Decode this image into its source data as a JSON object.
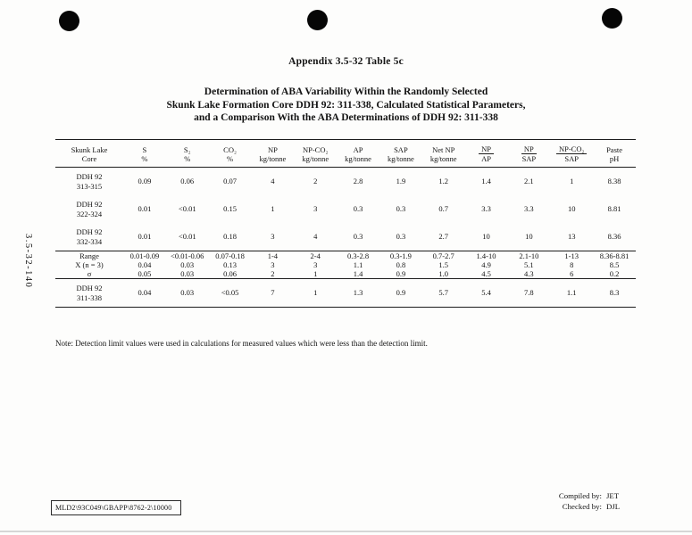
{
  "page": {
    "side_label": "3.5-32-140",
    "appendix_title": "Appendix 3.5-32 Table 5c",
    "heading_lines": [
      "Determination of ABA Variability Within the Randomly Selected",
      "Skunk Lake Formation Core DDH 92: 311-338, Calculated Statistical Parameters,",
      "and a Comparison With the ABA Determinations of DDH 92: 311-338"
    ],
    "note": "Note:  Detection limit values were used in calculations for measured values which were less than the detection limit.",
    "footer_reference": "MLD2\\93C049\\GBAPP\\8762-2\\10000",
    "credits": {
      "compiled_label": "Compiled by:",
      "compiled_value": "JET",
      "checked_label": "Checked by:",
      "checked_value": "DJL"
    }
  },
  "table": {
    "headers": [
      {
        "line1": "Skunk Lake",
        "line2": "Core"
      },
      {
        "line1": "S",
        "line2": "%"
      },
      {
        "line1": "S₂",
        "line2": "%"
      },
      {
        "line1": "CO₂",
        "line2": "%"
      },
      {
        "line1": "NP",
        "line2": "kg/tonne"
      },
      {
        "line1": "NP-CO₂",
        "line2": "kg/tonne"
      },
      {
        "line1": "AP",
        "line2": "kg/tonne"
      },
      {
        "line1": "SAP",
        "line2": "kg/tonne"
      },
      {
        "line1": "Net NP",
        "line2": "kg/tonne"
      },
      {
        "line1": "NP",
        "line2": "AP",
        "fraction": true
      },
      {
        "line1": "NP",
        "line2": "SAP",
        "fraction": true
      },
      {
        "line1": "NP-CO₂",
        "line2": "SAP",
        "fraction": true
      },
      {
        "line1": "Paste",
        "line2": "pH"
      }
    ],
    "rows": [
      {
        "label_lines": [
          "DDH 92",
          "313-315"
        ],
        "tall": true,
        "values": [
          "0.09",
          "0.06",
          "0.07",
          "4",
          "2",
          "2.8",
          "1.9",
          "1.2",
          "1.4",
          "2.1",
          "1",
          "8.38"
        ]
      },
      {
        "label_lines": [
          "DDH 92",
          "322-324"
        ],
        "tall": true,
        "values": [
          "0.01",
          "<0.01",
          "0.15",
          "1",
          "3",
          "0.3",
          "0.3",
          "0.7",
          "3.3",
          "3.3",
          "10",
          "8.81"
        ]
      },
      {
        "label_lines": [
          "DDH 92",
          "332-334"
        ],
        "tall": true,
        "values": [
          "0.01",
          "<0.01",
          "0.18",
          "3",
          "4",
          "0.3",
          "0.3",
          "2.7",
          "10",
          "10",
          "13",
          "8.36"
        ]
      },
      {
        "label_lines": [
          "Range"
        ],
        "section_start": true,
        "values": [
          "0.01-0.09",
          "<0.01-0.06",
          "0.07-0.18",
          "1-4",
          "2-4",
          "0.3-2.8",
          "0.3-1.9",
          "0.7-2.7",
          "1.4-10",
          "2.1-10",
          "1-13",
          "8.36-8.81"
        ]
      },
      {
        "label_lines": [
          "X (n = 3)"
        ],
        "values": [
          "0.04",
          "0.03",
          "0.13",
          "3",
          "3",
          "1.1",
          "0.8",
          "1.5",
          "4.9",
          "5.1",
          "8",
          "8.5"
        ]
      },
      {
        "label_lines": [
          "σ"
        ],
        "values": [
          "0.05",
          "0.03",
          "0.06",
          "2",
          "1",
          "1.4",
          "0.9",
          "1.0",
          "4.5",
          "4.3",
          "6",
          "0.2"
        ]
      },
      {
        "label_lines": [
          "DDH 92",
          "311-338"
        ],
        "section_start": true,
        "tall": true,
        "values": [
          "0.04",
          "0.03",
          "<0.05",
          "7",
          "1",
          "1.3",
          "0.9",
          "5.7",
          "5.4",
          "7.8",
          "1.1",
          "8.3"
        ]
      }
    ]
  }
}
